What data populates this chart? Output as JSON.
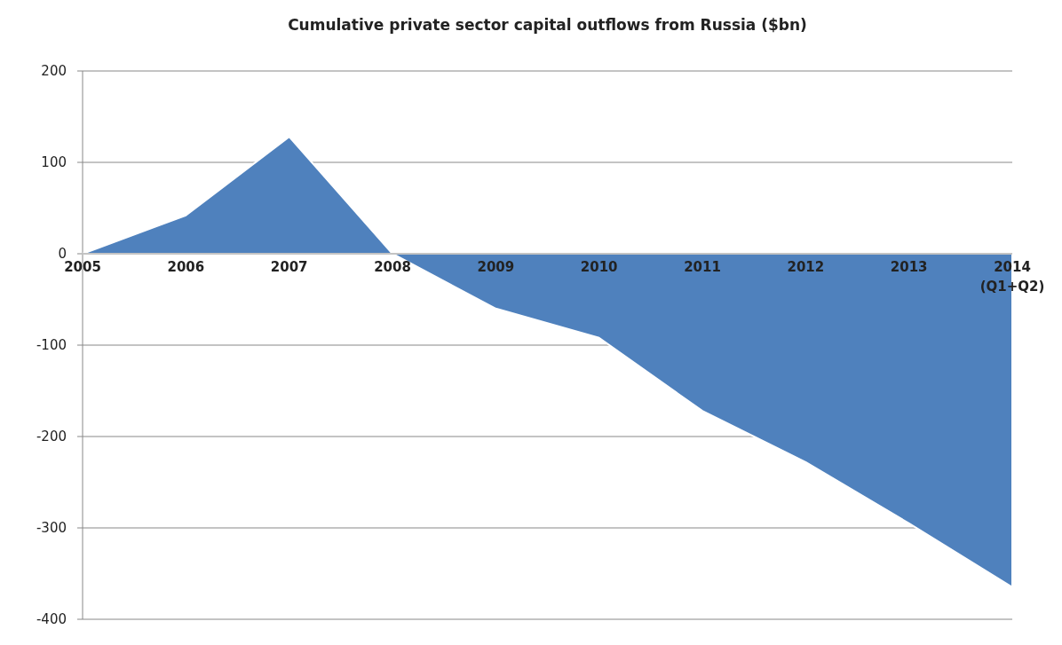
{
  "chart_data": {
    "type": "area",
    "title": "Cumulative private sector capital outflows from Russia ($bn)",
    "categories": [
      "2005",
      "2006",
      "2007",
      "2008",
      "2009",
      "2010",
      "2011",
      "2012",
      "2013",
      "2014\n(Q1+Q2)"
    ],
    "values": [
      0,
      42,
      128,
      0,
      -60,
      -92,
      -172,
      -228,
      -295,
      -365
    ],
    "color": "#4f81bd",
    "ylim": [
      -400,
      200
    ],
    "yticks": [
      -400,
      -300,
      -200,
      -100,
      0,
      100,
      200
    ],
    "grid": "y"
  }
}
